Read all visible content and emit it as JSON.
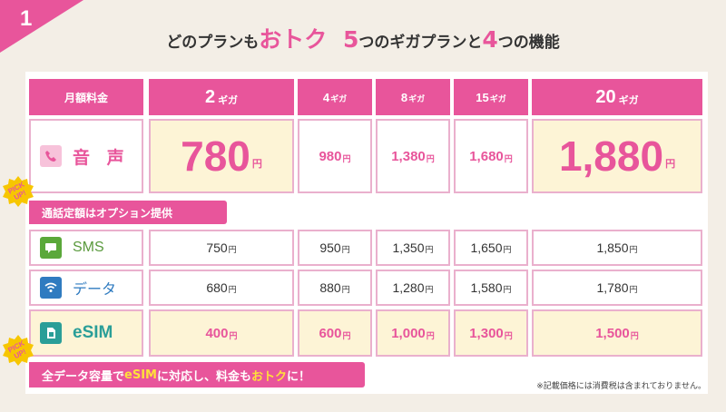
{
  "section_number": "1",
  "title": {
    "part1": "どのプランも",
    "part2": "おトク",
    "part3": "5",
    "part4": "つのギガプランと",
    "part5": "4",
    "part6": "つの機能"
  },
  "table": {
    "header_label": "月額料金",
    "plans": [
      {
        "num": "2",
        "unit": "ギガ"
      },
      {
        "num": "4",
        "unit": "ギガ"
      },
      {
        "num": "8",
        "unit": "ギガ"
      },
      {
        "num": "15",
        "unit": "ギガ"
      },
      {
        "num": "20",
        "unit": "ギガ"
      }
    ],
    "yen": "円",
    "rows": {
      "voice": {
        "label": "音 声",
        "icon": "phone-icon",
        "prices": [
          "780",
          "980",
          "1,380",
          "1,680",
          "1,880"
        ]
      },
      "sms": {
        "label": "SMS",
        "icon": "chat-icon",
        "prices": [
          "750",
          "950",
          "1,350",
          "1,650",
          "1,850"
        ]
      },
      "data": {
        "label": "データ",
        "icon": "wifi-icon",
        "prices": [
          "680",
          "880",
          "1,280",
          "1,580",
          "1,780"
        ]
      },
      "esim": {
        "label": "eSIM",
        "icon": "sim-icon",
        "prices": [
          "400",
          "600",
          "1,000",
          "1,300",
          "1,500"
        ]
      }
    }
  },
  "banners": {
    "voice_option": "通話定額はオプション提供",
    "esim_part1": "全データ容量で",
    "esim_part2": "eSIM",
    "esim_part3": "に対応し、料金も",
    "esim_part4": "おトク",
    "esim_part5": "に！"
  },
  "pickup_badge": {
    "line1": "PICK",
    "line2": "UP!"
  },
  "note": "※記載価格には消費税は含まれておりません。",
  "colors": {
    "accent": "#e8559b",
    "highlight_bg": "#fdf4d6",
    "background": "#f3eee6",
    "badge": "#f7c600"
  }
}
